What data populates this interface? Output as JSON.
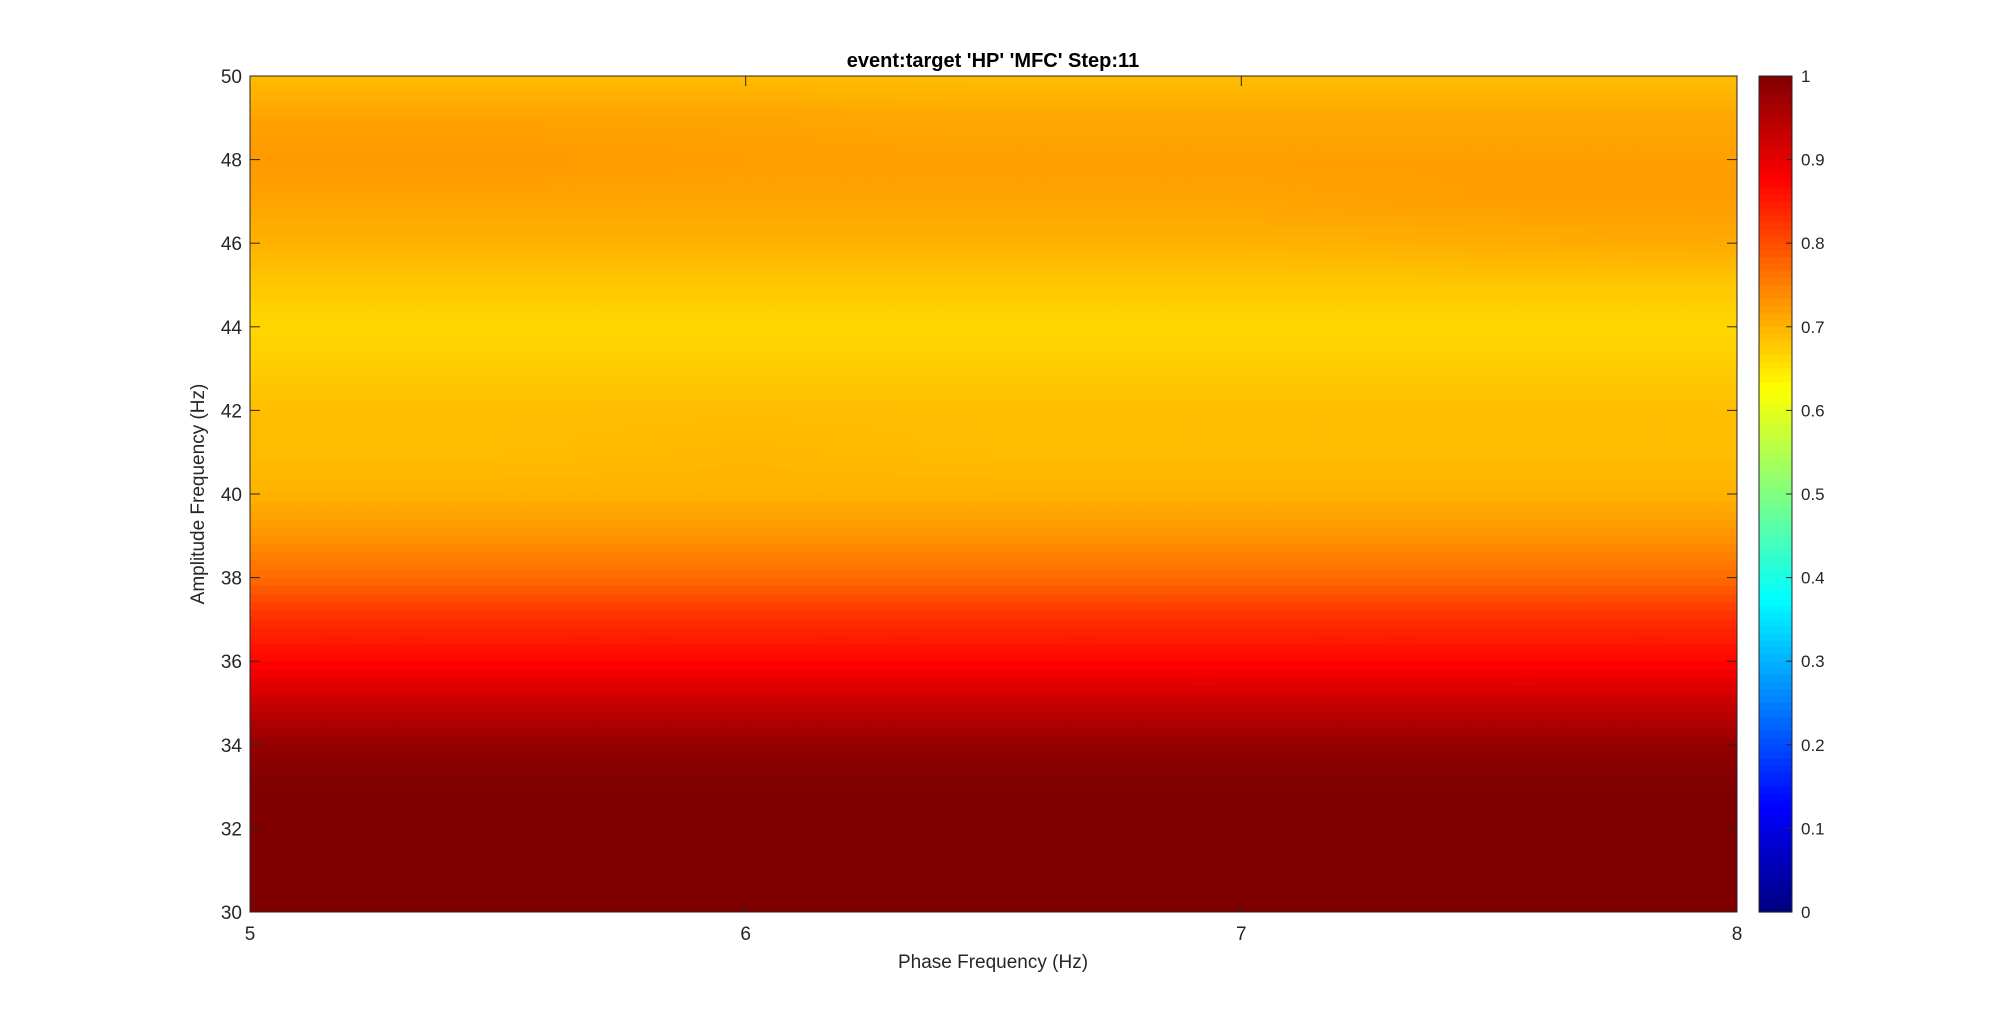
{
  "chart_data": {
    "type": "heatmap",
    "title": "event:target 'HP'  'MFC' Step:11",
    "xlabel": "Phase Frequency (Hz)",
    "ylabel": "Amplitude Frequency (Hz)",
    "xlim": [
      5,
      8
    ],
    "ylim": [
      30,
      50
    ],
    "xticks": [
      "5",
      "6",
      "7",
      "8"
    ],
    "yticks": [
      "30",
      "32",
      "34",
      "36",
      "38",
      "40",
      "42",
      "44",
      "46",
      "48",
      "50"
    ],
    "colormap": "jet",
    "colorbar": {
      "range": [
        0,
        1
      ],
      "ticks": [
        "0",
        "0.1",
        "0.2",
        "0.3",
        "0.4",
        "0.5",
        "0.6",
        "0.7",
        "0.8",
        "0.9",
        "1"
      ]
    },
    "x": [
      5,
      5.5,
      6,
      6.5,
      7,
      7.5,
      8
    ],
    "y": [
      30,
      31,
      32,
      33,
      34,
      35,
      36,
      37,
      38,
      39,
      40,
      41,
      42,
      43,
      44,
      45,
      46,
      47,
      48,
      49,
      50
    ],
    "z": [
      [
        1.0,
        1.0,
        1.0,
        1.0,
        1.0,
        1.0,
        1.0
      ],
      [
        1.0,
        1.0,
        1.0,
        1.0,
        1.0,
        1.0,
        1.0
      ],
      [
        1.0,
        1.0,
        1.0,
        1.0,
        1.0,
        1.0,
        1.0
      ],
      [
        1.0,
        1.0,
        1.0,
        1.0,
        1.0,
        1.0,
        1.0
      ],
      [
        0.98,
        0.98,
        0.98,
        0.98,
        0.98,
        0.98,
        0.98
      ],
      [
        0.93,
        0.93,
        0.93,
        0.93,
        0.93,
        0.93,
        0.93
      ],
      [
        0.87,
        0.87,
        0.87,
        0.87,
        0.87,
        0.87,
        0.87
      ],
      [
        0.83,
        0.83,
        0.83,
        0.83,
        0.83,
        0.83,
        0.83
      ],
      [
        0.77,
        0.77,
        0.77,
        0.77,
        0.77,
        0.77,
        0.77
      ],
      [
        0.73,
        0.73,
        0.73,
        0.73,
        0.73,
        0.73,
        0.73
      ],
      [
        0.7,
        0.7,
        0.7,
        0.7,
        0.7,
        0.7,
        0.7
      ],
      [
        0.69,
        0.69,
        0.695,
        0.69,
        0.69,
        0.69,
        0.69
      ],
      [
        0.69,
        0.69,
        0.69,
        0.69,
        0.69,
        0.69,
        0.69
      ],
      [
        0.675,
        0.675,
        0.675,
        0.675,
        0.675,
        0.675,
        0.675
      ],
      [
        0.665,
        0.665,
        0.665,
        0.665,
        0.665,
        0.665,
        0.665
      ],
      [
        0.68,
        0.68,
        0.68,
        0.68,
        0.68,
        0.68,
        0.68
      ],
      [
        0.7,
        0.7,
        0.7,
        0.7,
        0.7,
        0.705,
        0.71
      ],
      [
        0.715,
        0.715,
        0.715,
        0.715,
        0.715,
        0.72,
        0.72
      ],
      [
        0.725,
        0.725,
        0.72,
        0.72,
        0.72,
        0.72,
        0.72
      ],
      [
        0.715,
        0.715,
        0.715,
        0.71,
        0.71,
        0.71,
        0.71
      ],
      [
        0.69,
        0.69,
        0.69,
        0.69,
        0.69,
        0.69,
        0.69
      ]
    ]
  }
}
